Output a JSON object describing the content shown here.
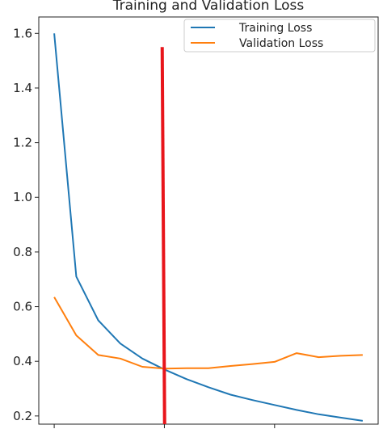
{
  "chart_data": {
    "type": "line",
    "title": "Training and Validation Loss",
    "xlabel": "",
    "ylabel": "",
    "xlim": [
      -0.7,
      14.7
    ],
    "ylim": [
      0.17,
      1.66
    ],
    "xticks": [
      0,
      5,
      10
    ],
    "yticks": [
      0.2,
      0.4,
      0.6,
      0.8,
      1.0,
      1.2,
      1.4,
      1.6
    ],
    "ytick_labels": [
      "0.2",
      "0.4",
      "0.6",
      "0.8",
      "1.0",
      "1.2",
      "1.4",
      "1.6"
    ],
    "grid": false,
    "legend_position": "top-right",
    "series": [
      {
        "name": "Training Loss",
        "color": "#1f77b4",
        "x": [
          0,
          1,
          2,
          3,
          4,
          5,
          6,
          7,
          8,
          9,
          10,
          11,
          12,
          13,
          14
        ],
        "y": [
          1.6,
          0.71,
          0.55,
          0.465,
          0.41,
          0.37,
          0.335,
          0.305,
          0.278,
          0.258,
          0.24,
          0.222,
          0.206,
          0.194,
          0.182
        ]
      },
      {
        "name": "Validation Loss",
        "color": "#ff7f0e",
        "x": [
          0,
          1,
          2,
          3,
          4,
          5,
          6,
          7,
          8,
          9,
          10,
          11,
          12,
          13,
          14
        ],
        "y": [
          0.635,
          0.495,
          0.423,
          0.41,
          0.38,
          0.373,
          0.375,
          0.375,
          0.383,
          0.39,
          0.398,
          0.43,
          0.415,
          0.42,
          0.423
        ]
      }
    ],
    "annotations": [
      {
        "type": "vertical-line",
        "x": 4.9,
        "y_from": 0.17,
        "y_to": 1.55,
        "color": "#e8151b"
      }
    ]
  }
}
